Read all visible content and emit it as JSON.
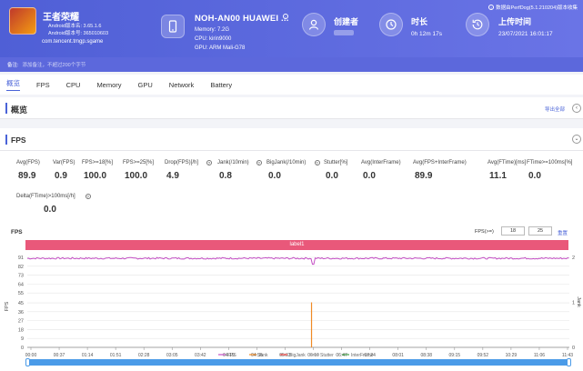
{
  "header": {
    "app_name": "王者荣耀",
    "android_version_name": "Android版本名: 3.65.1.6",
    "android_version_code": "Android版本号: 365010603",
    "package": "com.tencent.tmgp.sgame",
    "device_name": "NOH-AN00 HUAWEI ...",
    "memory": "Memory: 7.2G",
    "cpu": "CPU: kirin9000",
    "gpu": "GPU: ARM Mali-G78",
    "creator_label": "创建者",
    "duration_label": "时长",
    "duration_value": "0h 12m 17s",
    "upload_label": "上传时间",
    "upload_value": "23/07/2021 16:01:17",
    "version_note": "数据由PerfDog(5.1.210204)版本收集"
  },
  "remark": {
    "label": "备注:",
    "hint": "添加备注，不超过200个字节"
  },
  "tabs": [
    "概览",
    "FPS",
    "CPU",
    "Memory",
    "GPU",
    "Network",
    "Battery"
  ],
  "overview": {
    "title": "概览",
    "collapse_all": "导出全部"
  },
  "fps_section": {
    "title": "FPS",
    "metrics": [
      {
        "label": "Avg(FPS)",
        "value": "89.9",
        "help": false
      },
      {
        "label": "Var(FPS)",
        "value": "0.9",
        "help": false
      },
      {
        "label": "FPS>=18[%]",
        "value": "100.0",
        "help": false
      },
      {
        "label": "FPS>=25[%]",
        "value": "100.0",
        "help": false
      },
      {
        "label": "Drop(FPS)[/h]",
        "value": "4.9",
        "help": true
      },
      {
        "label": "Jank(/10min)",
        "value": "0.8",
        "help": true
      },
      {
        "label": "BigJank(/10min)",
        "value": "0.0",
        "help": true
      },
      {
        "label": "Stutter[%]",
        "value": "0.0",
        "help": false
      },
      {
        "label": "Avg(InterFrame)",
        "value": "0.0",
        "help": false
      },
      {
        "label": "Avg(FPS+InterFrame)",
        "value": "89.9",
        "help": false
      },
      {
        "label": "Avg(FTime)[ms]",
        "value": "11.1",
        "help": false
      },
      {
        "label": "FTime>=100ms[%]",
        "value": "0.0",
        "help": false
      },
      {
        "label": "Delta(FTime)>100ms[/h]",
        "value": "0.0",
        "help": true
      }
    ],
    "chart_label": "FPS",
    "threshold_label": "FPS(>=)",
    "threshold_1": "18",
    "threshold_2": "25",
    "confirm": "重置",
    "band_label": "label1"
  },
  "chart_data": {
    "type": "line",
    "title": "",
    "ylabel": "FPS",
    "y2label": "Jank",
    "ylim": [
      0,
      91
    ],
    "y2lim": [
      0,
      2
    ],
    "y_ticks": [
      0,
      9,
      18,
      27,
      36,
      45,
      55,
      64,
      73,
      82,
      91
    ],
    "y_tick_labels": [
      "0",
      "9",
      "18",
      "27",
      "36",
      "45",
      "55",
      "64",
      "73",
      "82",
      "91"
    ],
    "y2_ticks": [
      0,
      1,
      2
    ],
    "x_ticks": [
      "00:00",
      "00:37",
      "01:14",
      "01:51",
      "02:28",
      "03:05",
      "03:42",
      "04:19",
      "04:56",
      "05:33",
      "06:10",
      "06:47",
      "07:24",
      "08:01",
      "08:38",
      "09:15",
      "09:52",
      "10:29",
      "11:06",
      "11:43"
    ],
    "grid": true,
    "legend": [
      "FPS",
      "Jank",
      "BigJank",
      "Stutter",
      "InterFrame"
    ],
    "series": [
      {
        "name": "FPS",
        "color": "#c44fc4",
        "baseline": 90,
        "dip_at": "06:10",
        "dip_value": 84
      },
      {
        "name": "Jank",
        "color": "#f08a24",
        "spike_at": "06:10",
        "spike_value": 1
      }
    ],
    "colors": {
      "fps": "#c44fc4",
      "jank": "#f08a24",
      "bigjank": "#e53935",
      "stutter": "#9e9e9e",
      "interframe": "#43a047"
    }
  }
}
